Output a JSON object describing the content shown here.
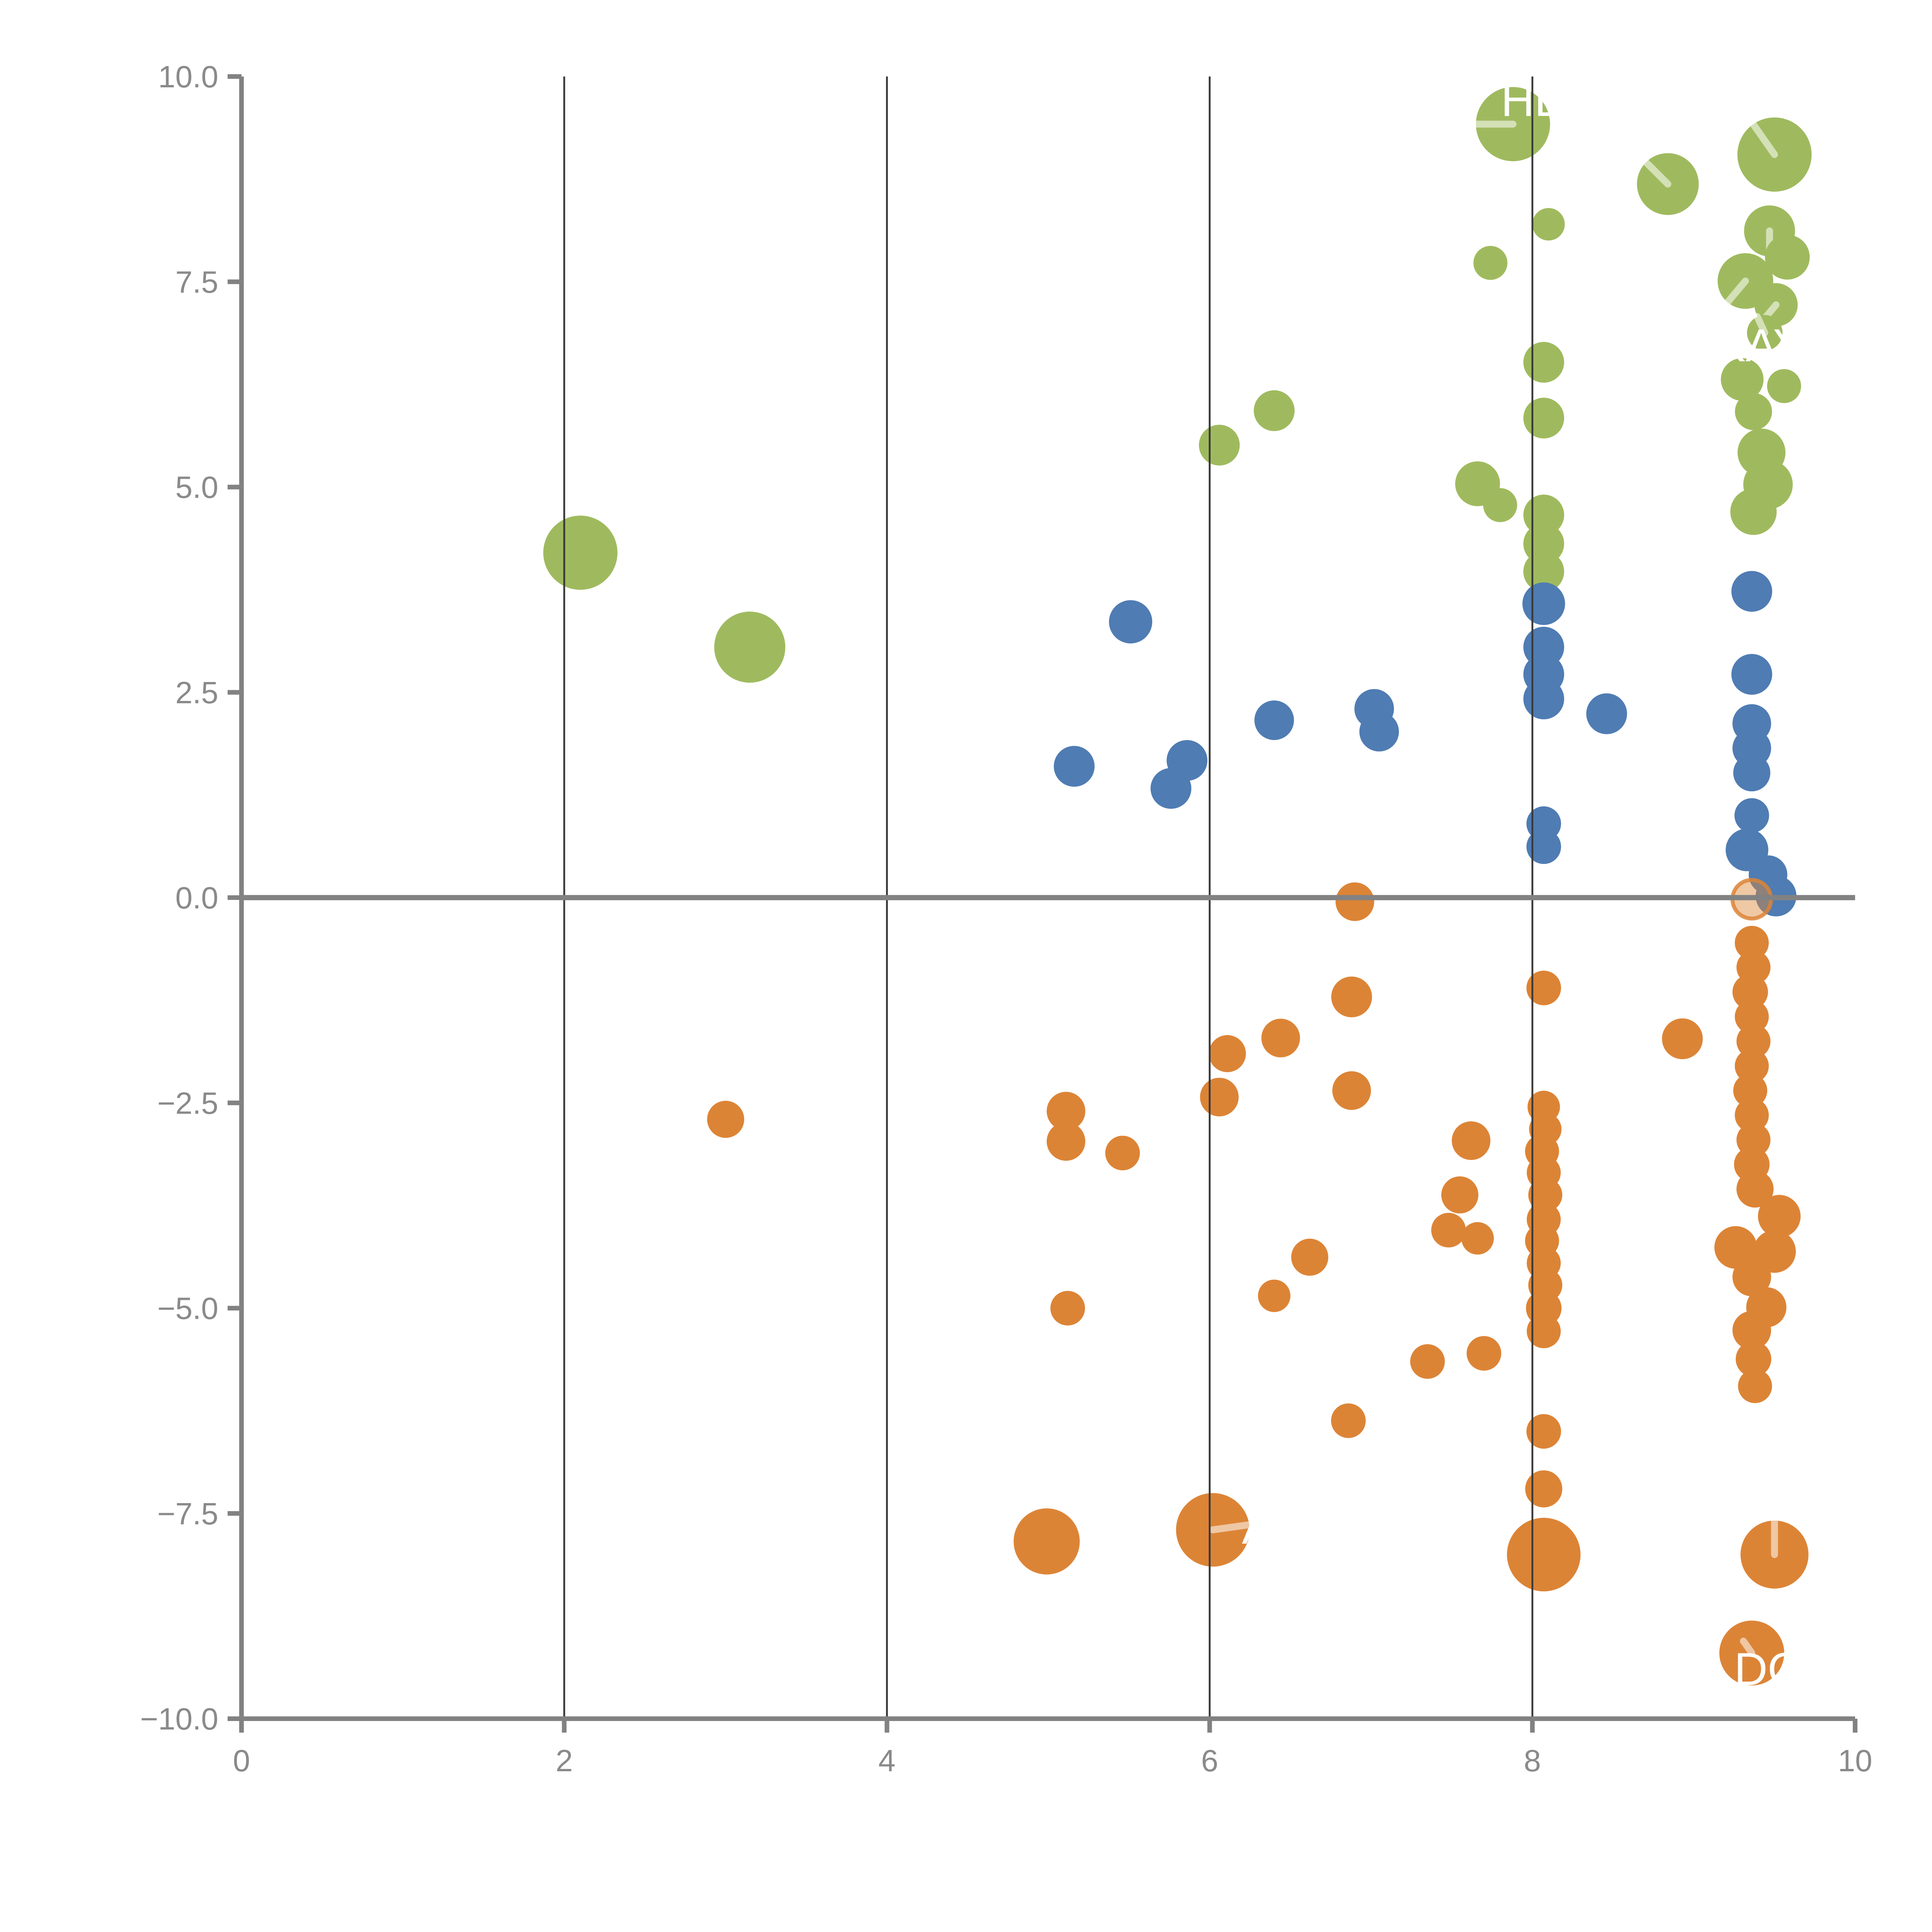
{
  "chart_data": {
    "type": "scatter",
    "title": "",
    "xlabel": "",
    "ylabel": "",
    "x_axis": {
      "range": [
        0,
        10
      ],
      "ticks": [
        0,
        2,
        4,
        6,
        8,
        10
      ],
      "tick_labels": [
        "0",
        "2",
        "4",
        "6",
        "8",
        "10"
      ]
    },
    "y_axis": {
      "range": [
        -10,
        10
      ],
      "ticks": [
        10,
        7.5,
        5,
        2.5,
        0,
        -2.5,
        -5,
        -7.5,
        -10
      ],
      "tick_labels": [
        "10.0",
        "7.5",
        "5.0",
        "2.5",
        "0.0",
        "−2.5",
        "−5.0",
        "−7.5",
        "−10.0"
      ]
    },
    "gridlines_x": [
      2,
      4,
      6,
      8
    ],
    "zero_rule_y": 0,
    "legend": "none",
    "colors": {
      "green": "#9fba5e",
      "blue": "#4f7cb3",
      "orange": "#dc8436",
      "axis": "#828282",
      "grid": "#3a3a3a",
      "tick_text": "#8a8a8a",
      "annotation_text": "#ffffff",
      "hand_line": "rgba(255,255,255,0.55)"
    },
    "series": [
      {
        "name": "green",
        "points": [
          {
            "x": 7.88,
            "y": 9.42,
            "r": 24,
            "a": 180
          },
          {
            "x": 8.84,
            "y": 8.69,
            "r": 20,
            "a": 135
          },
          {
            "x": 9.5,
            "y": 9.05,
            "r": 24,
            "a": 125
          },
          {
            "x": 9.47,
            "y": 8.12,
            "r": 16.5,
            "a": 270
          },
          {
            "x": 9.32,
            "y": 7.51,
            "r": 18,
            "a": 230
          },
          {
            "x": 9.58,
            "y": 7.8,
            "r": 14.5
          },
          {
            "x": 9.51,
            "y": 7.22,
            "r": 14,
            "a": 230
          },
          {
            "x": 7.74,
            "y": 7.73,
            "r": 11
          },
          {
            "x": 8.1,
            "y": 8.2,
            "r": 10.5
          },
          {
            "x": 9.44,
            "y": 6.88,
            "r": 11.5,
            "a": 115
          },
          {
            "x": 9.3,
            "y": 6.31,
            "r": 13.8
          },
          {
            "x": 9.37,
            "y": 5.92,
            "r": 12
          },
          {
            "x": 9.56,
            "y": 6.23,
            "r": 11
          },
          {
            "x": 8.07,
            "y": 6.52,
            "r": 13.2
          },
          {
            "x": 8.07,
            "y": 5.84,
            "r": 13.2
          },
          {
            "x": 6.06,
            "y": 5.51,
            "r": 13.2
          },
          {
            "x": 6.4,
            "y": 5.93,
            "r": 13.2
          },
          {
            "x": 7.66,
            "y": 5.04,
            "r": 14.5
          },
          {
            "x": 7.8,
            "y": 4.78,
            "r": 11
          },
          {
            "x": 9.42,
            "y": 5.42,
            "r": 15.5
          },
          {
            "x": 9.46,
            "y": 5.03,
            "r": 16
          },
          {
            "x": 9.37,
            "y": 4.7,
            "r": 15
          },
          {
            "x": 2.1,
            "y": 4.2,
            "r": 24
          },
          {
            "x": 3.15,
            "y": 3.05,
            "r": 23
          },
          {
            "x": 8.07,
            "y": 4.66,
            "r": 13.2
          },
          {
            "x": 8.07,
            "y": 4.31,
            "r": 13.2
          },
          {
            "x": 8.07,
            "y": 3.97,
            "r": 13.2
          }
        ]
      },
      {
        "name": "blue",
        "points": [
          {
            "x": 5.51,
            "y": 3.36,
            "r": 14
          },
          {
            "x": 6.4,
            "y": 2.16,
            "r": 12.8
          },
          {
            "x": 7.02,
            "y": 2.3,
            "r": 12.8
          },
          {
            "x": 7.05,
            "y": 2.02,
            "r": 12.8
          },
          {
            "x": 5.16,
            "y": 1.6,
            "r": 13.2
          },
          {
            "x": 5.86,
            "y": 1.67,
            "r": 13.2
          },
          {
            "x": 5.76,
            "y": 1.33,
            "r": 13.2
          },
          {
            "x": 8.07,
            "y": 3.58,
            "r": 13.8
          },
          {
            "x": 8.07,
            "y": 3.05,
            "r": 13.2
          },
          {
            "x": 8.07,
            "y": 2.72,
            "r": 13.2
          },
          {
            "x": 8.07,
            "y": 2.42,
            "r": 13.2
          },
          {
            "x": 8.46,
            "y": 2.24,
            "r": 13.2
          },
          {
            "x": 9.36,
            "y": 3.73,
            "r": 13.2
          },
          {
            "x": 9.36,
            "y": 2.72,
            "r": 13.2
          },
          {
            "x": 9.36,
            "y": 2.12,
            "r": 12.5
          },
          {
            "x": 9.36,
            "y": 1.82,
            "r": 12.5
          },
          {
            "x": 9.36,
            "y": 1.52,
            "r": 12
          },
          {
            "x": 9.36,
            "y": 1.0,
            "r": 11.2
          },
          {
            "x": 9.33,
            "y": 0.58,
            "r": 13.8
          },
          {
            "x": 9.46,
            "y": 0.28,
            "r": 12.5
          },
          {
            "x": 9.51,
            "y": 0.02,
            "r": 13.2
          },
          {
            "x": 8.07,
            "y": 0.9,
            "r": 11.2
          },
          {
            "x": 8.07,
            "y": 0.62,
            "r": 11.2
          }
        ]
      },
      {
        "name": "orange",
        "points": [
          {
            "x": 6.9,
            "y": -0.05,
            "r": 12.5
          },
          {
            "x": 8.07,
            "y": -1.1,
            "r": 11.2
          },
          {
            "x": 6.88,
            "y": -1.21,
            "r": 13.2
          },
          {
            "x": 6.44,
            "y": -1.71,
            "r": 12.5
          },
          {
            "x": 6.11,
            "y": -1.9,
            "r": 12
          },
          {
            "x": 8.93,
            "y": -1.72,
            "r": 13.2
          },
          {
            "x": 6.06,
            "y": -2.43,
            "r": 12.5
          },
          {
            "x": 6.88,
            "y": -2.35,
            "r": 12.5
          },
          {
            "x": 3.0,
            "y": -2.7,
            "r": 12
          },
          {
            "x": 5.11,
            "y": -2.6,
            "r": 12.5
          },
          {
            "x": 5.11,
            "y": -2.97,
            "r": 12.5
          },
          {
            "x": 5.46,
            "y": -3.11,
            "r": 11.2
          },
          {
            "x": 7.62,
            "y": -2.96,
            "r": 12.5
          },
          {
            "x": 7.55,
            "y": -3.62,
            "r": 12
          },
          {
            "x": 7.48,
            "y": -4.05,
            "r": 11.2
          },
          {
            "x": 7.66,
            "y": -4.15,
            "r": 10.5
          },
          {
            "x": 6.62,
            "y": -4.38,
            "r": 12
          },
          {
            "x": 6.4,
            "y": -4.85,
            "r": 10.5
          },
          {
            "x": 5.12,
            "y": -5.0,
            "r": 11.2
          },
          {
            "x": 7.35,
            "y": -5.65,
            "r": 11.2
          },
          {
            "x": 7.7,
            "y": -5.55,
            "r": 11.2
          },
          {
            "x": 6.86,
            "y": -6.37,
            "r": 11.2
          },
          {
            "x": 8.07,
            "y": -6.5,
            "r": 11.2
          },
          {
            "x": 8.07,
            "y": -7.2,
            "r": 12
          },
          {
            "x": 4.99,
            "y": -7.84,
            "r": 21.4
          },
          {
            "x": 6.02,
            "y": -7.7,
            "r": 23.8,
            "a": 8
          },
          {
            "x": 8.07,
            "y": -8.0,
            "r": 23.8
          },
          {
            "x": 9.5,
            "y": -8.0,
            "r": 22,
            "a": 90
          },
          {
            "x": 9.36,
            "y": -9.2,
            "r": 21,
            "a": 125,
            "f": 0.45
          },
          {
            "x": 8.07,
            "y": -2.55,
            "r": 10.5
          },
          {
            "x": 8.08,
            "y": -2.82,
            "r": 10.5
          },
          {
            "x": 8.06,
            "y": -3.09,
            "r": 11
          },
          {
            "x": 8.07,
            "y": -3.35,
            "r": 11
          },
          {
            "x": 8.08,
            "y": -3.62,
            "r": 11
          },
          {
            "x": 8.07,
            "y": -3.92,
            "r": 11
          },
          {
            "x": 8.06,
            "y": -4.18,
            "r": 11
          },
          {
            "x": 8.07,
            "y": -4.45,
            "r": 11
          },
          {
            "x": 8.08,
            "y": -4.72,
            "r": 11
          },
          {
            "x": 8.07,
            "y": -5.0,
            "r": 11.5
          },
          {
            "x": 8.07,
            "y": -5.28,
            "r": 11
          },
          {
            "x": 9.36,
            "y": -0.55,
            "r": 11
          },
          {
            "x": 9.37,
            "y": -0.85,
            "r": 11
          },
          {
            "x": 9.35,
            "y": -1.15,
            "r": 11.5
          },
          {
            "x": 9.36,
            "y": -1.45,
            "r": 11
          },
          {
            "x": 9.37,
            "y": -1.75,
            "r": 11
          },
          {
            "x": 9.36,
            "y": -2.05,
            "r": 11
          },
          {
            "x": 9.35,
            "y": -2.35,
            "r": 11
          },
          {
            "x": 9.36,
            "y": -2.65,
            "r": 11
          },
          {
            "x": 9.37,
            "y": -2.95,
            "r": 11
          },
          {
            "x": 9.36,
            "y": -3.25,
            "r": 11.5
          },
          {
            "x": 9.38,
            "y": -3.55,
            "r": 12
          },
          {
            "x": 9.53,
            "y": -3.88,
            "r": 13.8
          },
          {
            "x": 9.26,
            "y": -4.26,
            "r": 13.8
          },
          {
            "x": 9.5,
            "y": -4.31,
            "r": 13.8
          },
          {
            "x": 9.36,
            "y": -4.62,
            "r": 12.5
          },
          {
            "x": 9.45,
            "y": -4.99,
            "r": 13
          },
          {
            "x": 9.36,
            "y": -5.27,
            "r": 12.5
          },
          {
            "x": 9.37,
            "y": -5.62,
            "r": 11.5
          },
          {
            "x": 9.38,
            "y": -5.95,
            "r": 11
          }
        ]
      }
    ],
    "special_point": {
      "name": "translucent-orange",
      "x": 9.36,
      "y": -0.02,
      "r": 12.5,
      "fill_opacity": 0.45,
      "stroke_opacity": 0.85
    },
    "annotations": [
      {
        "id": "he",
        "text": "HE",
        "x": 7.805,
        "y": 9.52
      },
      {
        "id": "kay",
        "text": "KAY",
        "x": 9.13,
        "y": 6.53
      },
      {
        "id": "a",
        "text": "A",
        "x": 6.2,
        "y": -7.87
      },
      {
        "id": "do",
        "text": "DO",
        "x": 9.25,
        "y": -9.59
      }
    ]
  }
}
